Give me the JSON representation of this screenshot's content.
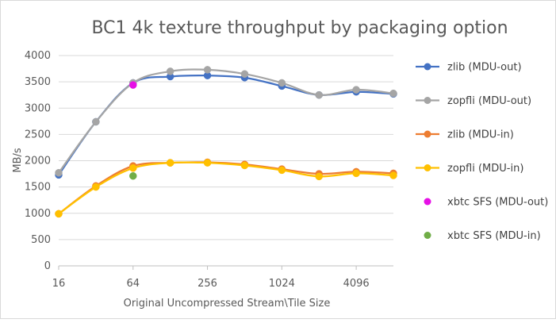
{
  "chart_data": {
    "type": "line",
    "title": "BC1 4k texture throughput by packaging option",
    "xlabel": "Original Uncompressed Stream\\Tile Size",
    "ylabel": "MB/s",
    "x_scale": "log2",
    "x": [
      16,
      32,
      64,
      128,
      256,
      512,
      1024,
      2048,
      4096,
      8192
    ],
    "x_tick_labels": [
      "16",
      "64",
      "256",
      "1024",
      "4096"
    ],
    "y_ticks": [
      "0",
      "500",
      "1000",
      "1500",
      "2000",
      "2500",
      "3000",
      "3500",
      "4000"
    ],
    "ylim": [
      0,
      4000
    ],
    "grid": true,
    "legend_position": "right",
    "series": [
      {
        "name": "zlib (MDU-out)",
        "color": "#4472C4",
        "smooth": true,
        "values": [
          1730,
          2740,
          3480,
          3600,
          3620,
          3580,
          3420,
          3250,
          3310,
          3270
        ]
      },
      {
        "name": "zopfli (MDU-out)",
        "color": "#A5A5A5",
        "smooth": true,
        "values": [
          1770,
          2740,
          3480,
          3700,
          3730,
          3650,
          3480,
          3250,
          3350,
          3280
        ]
      },
      {
        "name": "zlib (MDU-in)",
        "color": "#ED7D31",
        "smooth": true,
        "values": [
          990,
          1520,
          1900,
          1960,
          1970,
          1930,
          1840,
          1750,
          1790,
          1760
        ]
      },
      {
        "name": "zopfli (MDU-in)",
        "color": "#FFC000",
        "smooth": true,
        "values": [
          990,
          1500,
          1860,
          1960,
          1960,
          1910,
          1820,
          1700,
          1760,
          1720
        ]
      },
      {
        "name": "xbtc SFS (MDU-out)",
        "color": "#E610E6",
        "smooth": false,
        "line": false,
        "points": [
          [
            64,
            3440
          ]
        ]
      },
      {
        "name": "xbtc SFS (MDU-in)",
        "color": "#70AD47",
        "smooth": false,
        "line": false,
        "points": [
          [
            64,
            1710
          ]
        ]
      }
    ]
  }
}
